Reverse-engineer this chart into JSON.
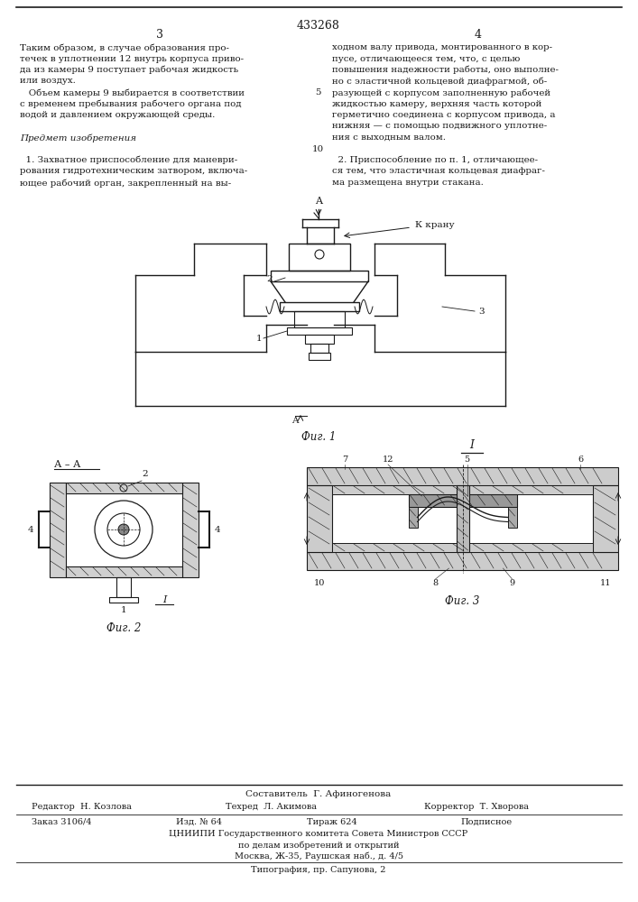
{
  "page_bg": "#ffffff",
  "patent_number": "433268",
  "page_numbers": [
    "3",
    "4"
  ],
  "left_text": [
    "Таким образом, в случае образования про-",
    "течек в уплотнении 12 внутрь корпуса приво-",
    "да из камеры 9 поступает рабочая жидкость",
    "или воздух.",
    "   Объем камеры 9 выбирается в соответствии",
    "с временем пребывания рабочего органа под",
    "водой и давлением окружающей среды.",
    "",
    "Предмет изобретения",
    "",
    "  1. Захватное приспособление для маневри-",
    "рования гидротехническим затвором, включа-",
    "ющее рабочий орган, закрепленный на вы-"
  ],
  "right_text": [
    "ходном валу привода, монтированного в кор-",
    "пусе, отличающееся тем, что, с целью",
    "повышения надежности работы, оно выполне-",
    "но с эластичной кольцевой диафрагмой, об-",
    "разующей с корпусом заполненную рабочей",
    "жидкостью камеру, верхняя часть которой",
    "герметично соединена с корпусом привода, а",
    "нижняя — с помощью подвижного уплотне-",
    "ния с выходным валом.",
    "",
    "  2. Приспособление по п. 1, отличающее-",
    "ся тем, что эластичная кольцевая диафраг-",
    "ма размещена внутри стакана."
  ],
  "fig1_caption": "Фиг. 1",
  "fig2_caption": "Фиг. 2",
  "fig3_caption": "Фиг. 3",
  "footer_line1": "Составитель  Г. Афиногенова",
  "footer_editor": "Редактор  Н. Козлова",
  "footer_tech": "Техред  Л. Акимова",
  "footer_corrector": "Корректор  Т. Хворова",
  "footer_order": "Заказ 3106/4",
  "footer_izd": "Изд. № 64",
  "footer_tirazh": "Тираж 624",
  "footer_podp": "Подписное",
  "footer_org": "ЦНИИПИ Государственного комитета Совета Министров СССР",
  "footer_dept": "по делам изобретений и открытий",
  "footer_addr": "Москва, Ж-35, Раушская наб., д. 4/5",
  "footer_print": "Типография, пр. Сапунова, 2",
  "text_color": "#1a1a1a",
  "line_color": "#1a1a1a"
}
